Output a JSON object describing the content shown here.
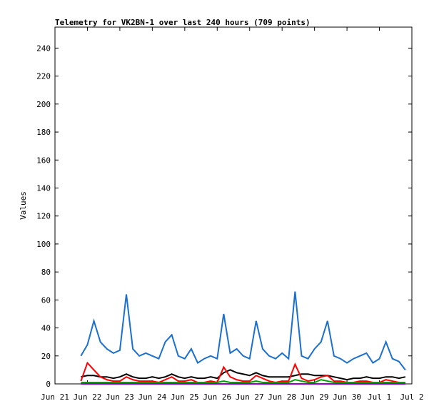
{
  "chart_data": {
    "type": "line",
    "title": "Telemetry for VK2BN-1 over last 240 hours (709 points)",
    "y_label": "Values",
    "x": [
      0.8,
      1.0,
      1.2,
      1.4,
      1.6,
      1.8,
      2.0,
      2.2,
      2.4,
      2.6,
      2.8,
      3.0,
      3.2,
      3.4,
      3.6,
      3.8,
      4.0,
      4.2,
      4.4,
      4.6,
      4.8,
      5.0,
      5.2,
      5.4,
      5.6,
      5.8,
      6.0,
      6.2,
      6.4,
      6.6,
      6.8,
      7.0,
      7.2,
      7.4,
      7.6,
      7.8,
      8.0,
      8.2,
      8.4,
      8.6,
      8.8,
      9.0,
      9.2,
      9.4,
      9.6,
      9.8,
      10.0,
      10.2,
      10.4,
      10.6,
      10.8
    ],
    "series": [
      {
        "color": "#1a6fcf",
        "values": [
          20,
          28,
          45,
          30,
          25,
          22,
          24,
          64,
          25,
          20,
          22,
          20,
          18,
          30,
          35,
          20,
          18,
          25,
          15,
          18,
          20,
          18,
          50,
          22,
          25,
          20,
          18,
          45,
          25,
          20,
          18,
          22,
          18,
          66,
          20,
          18,
          25,
          30,
          45,
          20,
          18,
          15,
          18,
          20,
          22,
          15,
          18,
          30,
          18,
          16,
          10
        ]
      },
      {
        "color": "#000000",
        "values": [
          5,
          6,
          6,
          5,
          5,
          4,
          5,
          7,
          5,
          4,
          4,
          5,
          4,
          5,
          7,
          5,
          4,
          5,
          4,
          4,
          5,
          4,
          8,
          10,
          8,
          7,
          6,
          8,
          6,
          5,
          5,
          5,
          5,
          6,
          7,
          7,
          6,
          6,
          6,
          5,
          4,
          3,
          4,
          4,
          5,
          4,
          4,
          5,
          5,
          4,
          5
        ]
      },
      {
        "color": "#ff0000",
        "values": [
          2,
          15,
          10,
          5,
          3,
          2,
          2,
          5,
          3,
          2,
          2,
          2,
          1,
          3,
          5,
          2,
          2,
          3,
          1,
          1,
          2,
          1,
          12,
          5,
          3,
          2,
          2,
          6,
          4,
          2,
          1,
          2,
          2,
          14,
          4,
          2,
          3,
          5,
          6,
          2,
          2,
          1,
          1,
          2,
          2,
          1,
          1,
          3,
          2,
          1,
          1
        ]
      },
      {
        "color": "#00a000",
        "values": [
          1,
          1,
          1,
          1,
          1,
          1,
          1,
          1,
          1,
          1,
          1,
          1,
          1,
          1,
          1,
          1,
          1,
          1,
          1,
          1,
          1,
          1,
          2,
          1,
          1,
          1,
          1,
          2,
          1,
          1,
          1,
          1,
          1,
          3,
          2,
          1,
          1,
          3,
          2,
          1,
          1,
          1,
          1,
          1,
          1,
          1,
          1,
          1,
          1,
          1,
          1
        ]
      },
      {
        "color": "#9400d3",
        "values": [
          0,
          0,
          0,
          0,
          0,
          0,
          0,
          0,
          0,
          0,
          0,
          0,
          0,
          0,
          0,
          0,
          0,
          0,
          0,
          0,
          0,
          0,
          0,
          0,
          0,
          0,
          0,
          0,
          0,
          0,
          0,
          0,
          0,
          0,
          0,
          0,
          0,
          0,
          0,
          0,
          0,
          0,
          0,
          0,
          0,
          0,
          0,
          0,
          0,
          0,
          0
        ]
      }
    ],
    "xlim": [
      0,
      11
    ],
    "xticks": [
      {
        "value": 0,
        "label": "Jun 21"
      },
      {
        "value": 1,
        "label": "Jun 22"
      },
      {
        "value": 2,
        "label": "Jun 23"
      },
      {
        "value": 3,
        "label": "Jun 24"
      },
      {
        "value": 4,
        "label": "Jun 25"
      },
      {
        "value": 5,
        "label": "Jun 26"
      },
      {
        "value": 6,
        "label": "Jun 27"
      },
      {
        "value": 7,
        "label": "Jun 28"
      },
      {
        "value": 8,
        "label": "Jun 29"
      },
      {
        "value": 9,
        "label": "Jun 30"
      },
      {
        "value": 10,
        "label": "Jul 1"
      },
      {
        "value": 11,
        "label": "Jul 2"
      }
    ],
    "ylim": [
      0,
      255
    ],
    "yticks": [
      0,
      20,
      40,
      60,
      80,
      100,
      120,
      140,
      160,
      180,
      200,
      220,
      240
    ]
  }
}
